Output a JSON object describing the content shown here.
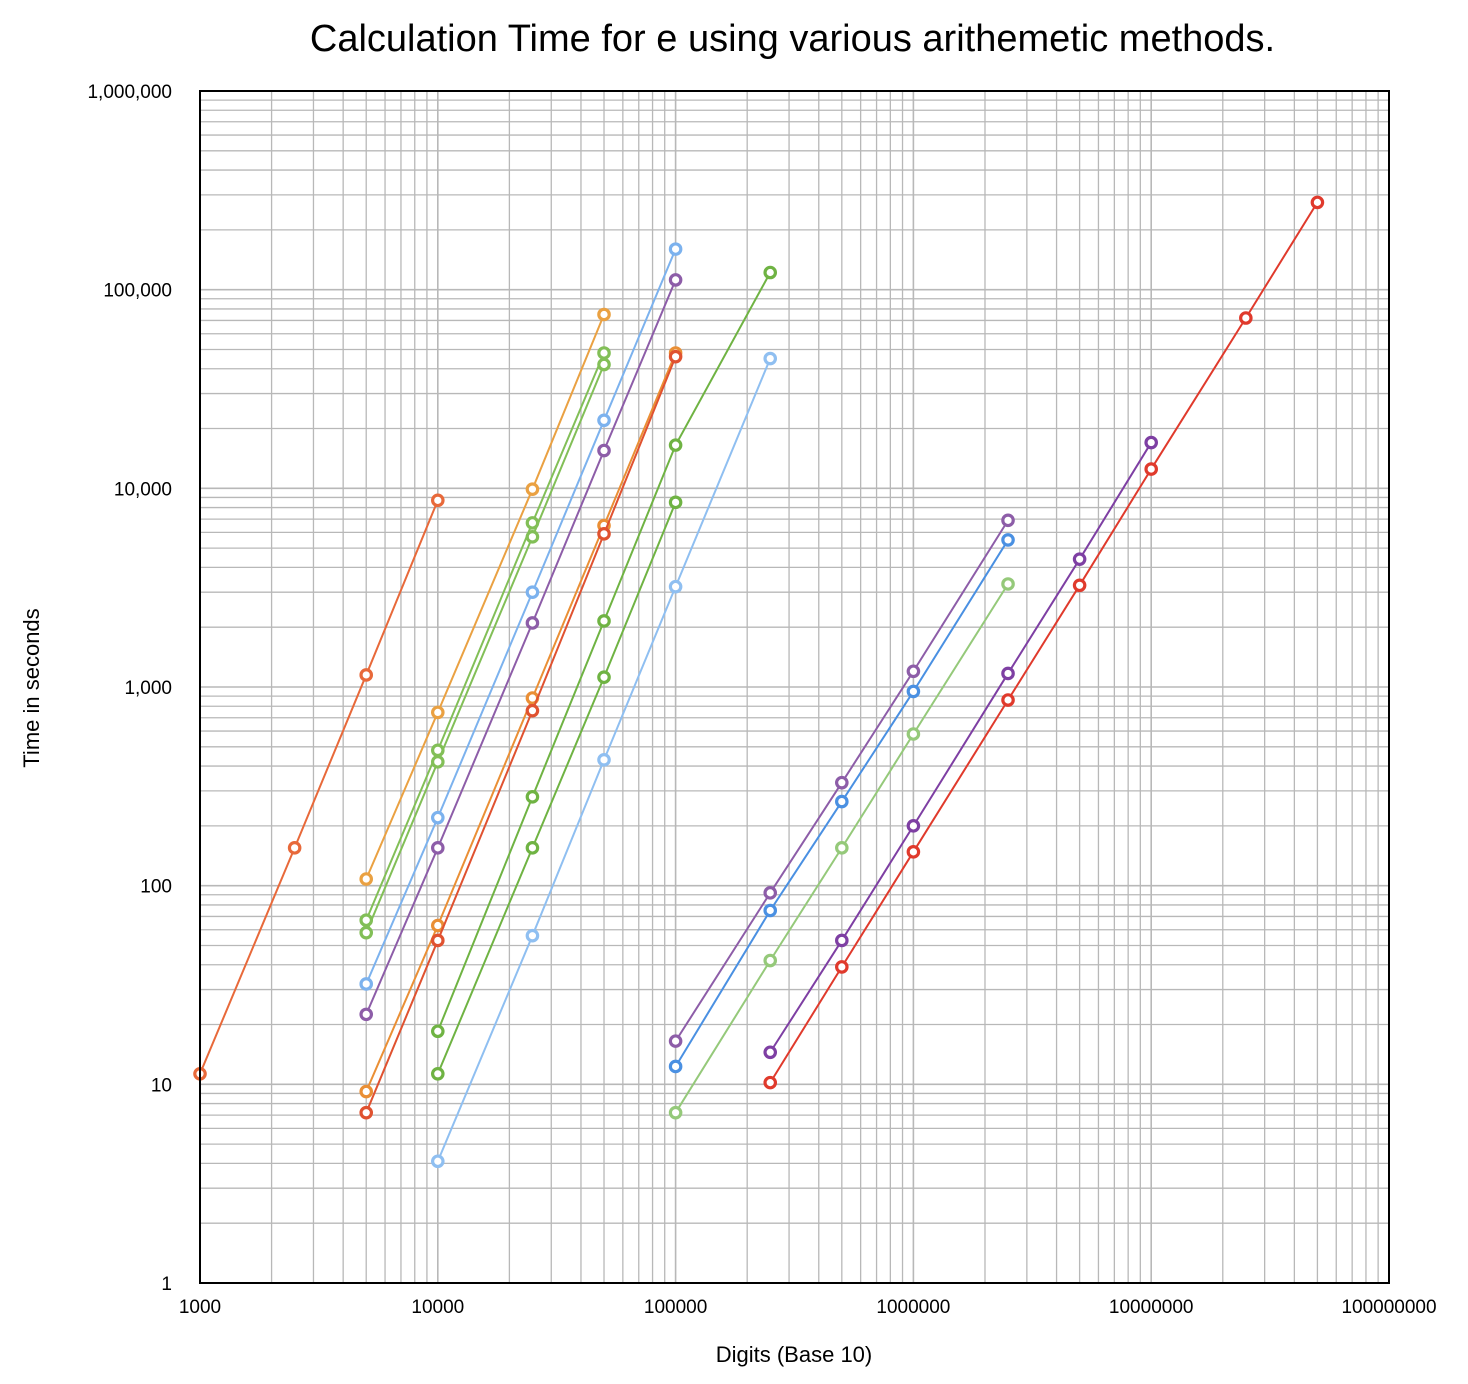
{
  "chart_data": {
    "type": "line",
    "title": "Calculation Time for e using various arithemetic methods.",
    "xlabel": "Digits (Base 10)",
    "ylabel": "Time in seconds",
    "x_scale": "log",
    "y_scale": "log",
    "xlim": [
      1000,
      100000000
    ],
    "ylim": [
      1,
      1000000
    ],
    "grid": true,
    "legend": "none",
    "x_ticks": [
      {
        "value": 1000,
        "label": "1000"
      },
      {
        "value": 10000,
        "label": "10000"
      },
      {
        "value": 100000,
        "label": "100000"
      },
      {
        "value": 1000000,
        "label": "1000000"
      },
      {
        "value": 10000000,
        "label": "10000000"
      },
      {
        "value": 100000000,
        "label": "100000000"
      }
    ],
    "y_ticks": [
      {
        "value": 1,
        "label": "1"
      },
      {
        "value": 10,
        "label": "10"
      },
      {
        "value": 100,
        "label": "100"
      },
      {
        "value": 1000,
        "label": "1,000"
      },
      {
        "value": 10000,
        "label": "10,000"
      },
      {
        "value": 100000,
        "label": "100,000"
      },
      {
        "value": 1000000,
        "label": "1,000,000"
      }
    ],
    "series": [
      {
        "color": "#e8693a",
        "x": [
          1000,
          2500,
          5000,
          10000
        ],
        "y": [
          11.3,
          155,
          1150,
          8700
        ]
      },
      {
        "color": "#eaa142",
        "x": [
          5000,
          10000,
          25000,
          50000
        ],
        "y": [
          108,
          745,
          9900,
          75000
        ]
      },
      {
        "color": "#82bf57",
        "x": [
          5000,
          10000,
          25000,
          50000
        ],
        "y": [
          67,
          480,
          6700,
          48000
        ]
      },
      {
        "color": "#82bf57",
        "x": [
          5000,
          10000,
          25000,
          50000
        ],
        "y": [
          58,
          420,
          5700,
          42000
        ]
      },
      {
        "color": "#7cb2ee",
        "x": [
          5000,
          10000,
          25000,
          50000,
          100000
        ],
        "y": [
          32,
          220,
          3000,
          22000,
          160000
        ]
      },
      {
        "color": "#8d5da8",
        "x": [
          5000,
          10000,
          25000,
          50000,
          100000
        ],
        "y": [
          22.5,
          155,
          2100,
          15500,
          112000
        ]
      },
      {
        "color": "#ea8f35",
        "x": [
          5000,
          10000,
          25000,
          50000,
          100000
        ],
        "y": [
          9.2,
          63,
          880,
          6500,
          48000
        ]
      },
      {
        "color": "#e05230",
        "x": [
          5000,
          10000,
          25000,
          50000,
          100000
        ],
        "y": [
          7.2,
          53,
          760,
          5900,
          46000
        ]
      },
      {
        "color": "#6fb343",
        "x": [
          10000,
          25000,
          50000,
          100000,
          250000
        ],
        "y": [
          18.5,
          280,
          2150,
          16500,
          122000
        ]
      },
      {
        "color": "#6fb343",
        "x": [
          10000,
          25000,
          50000,
          100000
        ],
        "y": [
          11.3,
          155,
          1120,
          8500
        ]
      },
      {
        "color": "#8fbff1",
        "x": [
          10000,
          25000,
          50000,
          100000,
          250000
        ],
        "y": [
          4.1,
          56,
          430,
          3200,
          45000
        ]
      },
      {
        "color": "#8d5da8",
        "x": [
          100000,
          250000,
          500000,
          1000000,
          2500000
        ],
        "y": [
          16.5,
          92,
          330,
          1200,
          6900
        ]
      },
      {
        "color": "#4a90e2",
        "x": [
          100000,
          250000,
          500000,
          1000000,
          2500000
        ],
        "y": [
          12.3,
          75,
          265,
          950,
          5500
        ]
      },
      {
        "color": "#95c97a",
        "x": [
          100000,
          250000,
          500000,
          1000000,
          2500000
        ],
        "y": [
          7.2,
          42,
          155,
          580,
          3300
        ]
      },
      {
        "color": "#7e3fa3",
        "x": [
          250000,
          500000,
          1000000,
          2500000,
          5000000,
          10000000
        ],
        "y": [
          14.5,
          53,
          200,
          1170,
          4400,
          17000
        ]
      },
      {
        "color": "#e03a2c",
        "x": [
          250000,
          500000,
          1000000,
          2500000,
          5000000,
          10000000,
          25000000,
          50000000
        ],
        "y": [
          10.2,
          39,
          148,
          860,
          3250,
          12500,
          72000,
          275000
        ]
      }
    ]
  }
}
